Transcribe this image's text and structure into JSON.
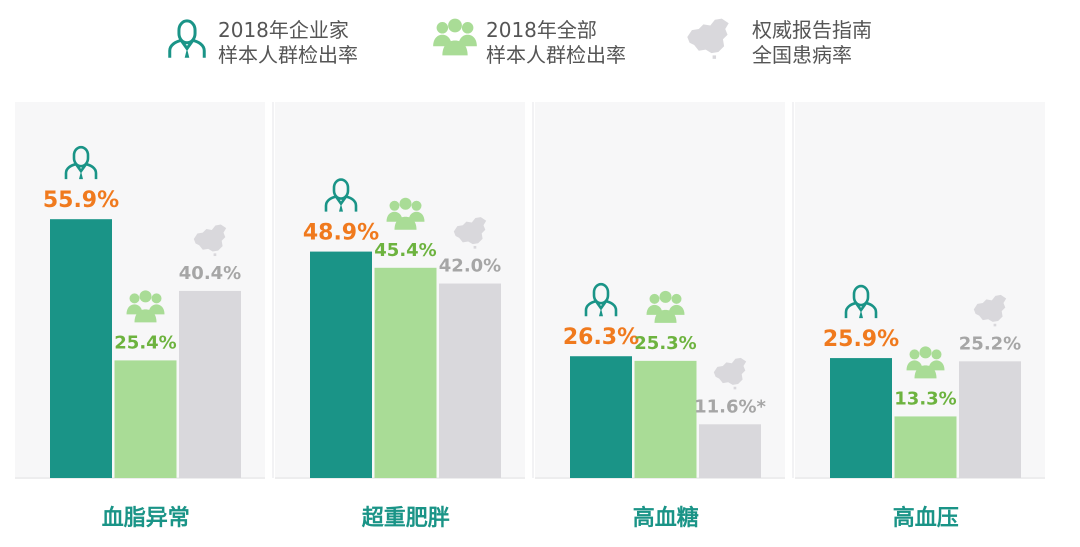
{
  "legend": [
    {
      "line1": "2018年企业家",
      "line2": "样本人群检出率",
      "icon": "person-icon",
      "color": "#1a9487"
    },
    {
      "line1": "2018年全部",
      "line2": "样本人群检出率",
      "icon": "group-icon",
      "color": "#a9dc96"
    },
    {
      "line1": "权威报告指南",
      "line2": "全国患病率",
      "icon": "china-map-icon",
      "color": "#d9d8dc"
    }
  ],
  "chart_data": {
    "type": "bar",
    "categories": [
      "血脂异常",
      "超重肥胖",
      "高血糖",
      "高血压"
    ],
    "series": [
      {
        "name": "2018年企业家样本人群检出率",
        "values": [
          55.9,
          48.9,
          26.3,
          25.9
        ],
        "labels": [
          "55.9%",
          "48.9%",
          "26.3%",
          "25.9%"
        ],
        "color": "#1a9487",
        "label_color": "#f07a1e"
      },
      {
        "name": "2018年全部样本人群检出率",
        "values": [
          25.4,
          45.4,
          25.3,
          13.3
        ],
        "labels": [
          "25.4%",
          "45.4%",
          "25.3%",
          "13.3%"
        ],
        "color": "#a9dc96",
        "label_color": "#6db33f"
      },
      {
        "name": "权威报告指南全国患病率",
        "values": [
          40.4,
          42.0,
          11.6,
          25.2
        ],
        "labels": [
          "40.4%",
          "42.0%",
          "11.6%*",
          "25.2%"
        ],
        "color": "#d9d8dc",
        "label_color": "#a6a6a6"
      }
    ],
    "ylim": [
      0,
      60
    ],
    "category_color": "#1a9487",
    "grid": false,
    "legend_position": "top"
  }
}
